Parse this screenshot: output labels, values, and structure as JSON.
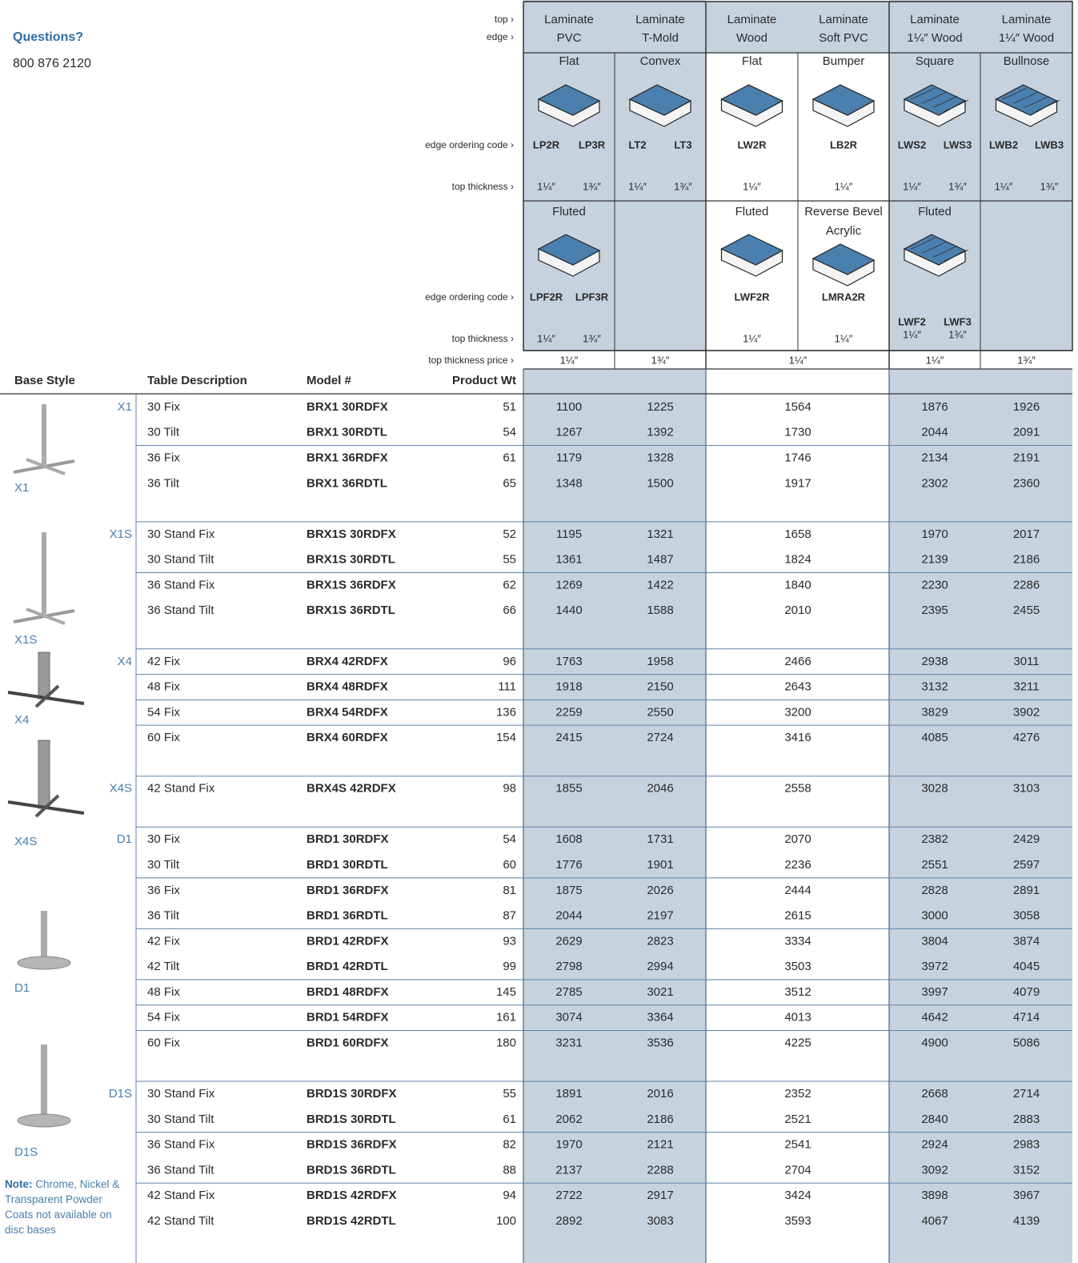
{
  "contact": {
    "title": "Questions?",
    "phone": "800 876 2120"
  },
  "row_labels": {
    "top": "top ›",
    "edge": "edge ›",
    "edge_code": "edge ordering code ›",
    "top_thickness": "top thickness ›",
    "price_thickness": "top thickness price ›"
  },
  "columns": [
    {
      "top": [
        "Laminate",
        "PVC"
      ]
    },
    {
      "top": [
        "Laminate",
        "T-Mold"
      ]
    },
    {
      "top": [
        "Laminate",
        "Wood"
      ]
    },
    {
      "top": [
        "Laminate",
        "Soft PVC"
      ]
    },
    {
      "top": [
        "Laminate",
        "1¼″ Wood"
      ]
    },
    {
      "top": [
        "Laminate",
        "1¼″ Wood"
      ]
    }
  ],
  "edges": [
    [
      {
        "name": [
          "Flat"
        ],
        "codes": [
          "LP2R",
          "LP3R"
        ],
        "thickness": [
          "1¼″",
          "1¾″"
        ]
      },
      {
        "name": [
          "Convex"
        ],
        "codes": [
          "LT2",
          "LT3"
        ],
        "thickness": [
          "1¼″",
          "1¾″"
        ]
      },
      {
        "name": [
          "Flat"
        ],
        "codes": [
          "LW2R"
        ],
        "thickness": [
          "1¼″"
        ]
      },
      {
        "name": [
          "Bumper"
        ],
        "codes": [
          "LB2R"
        ],
        "thickness": [
          "1¼″"
        ]
      },
      {
        "name": [
          "Square"
        ],
        "codes": [
          "LWS2",
          "LWS3"
        ],
        "thickness": [
          "1¼″",
          "1¾″"
        ]
      },
      {
        "name": [
          "Bullnose"
        ],
        "codes": [
          "LWB2",
          "LWB3"
        ],
        "thickness": [
          "1¼″",
          "1¾″"
        ]
      }
    ],
    [
      {
        "name": [
          "Fluted"
        ],
        "codes": [
          "LPF2R",
          "LPF3R"
        ],
        "thickness": [
          "1¼″",
          "1¾″"
        ]
      },
      null,
      {
        "name": [
          "Fluted"
        ],
        "codes": [
          "LWF2R"
        ],
        "thickness": [
          "1¼″"
        ]
      },
      {
        "name": [
          "Reverse Bevel",
          "Acrylic"
        ],
        "codes": [
          "LMRA2R"
        ],
        "thickness": [
          "1¼″"
        ]
      },
      {
        "name": [
          "Fluted"
        ],
        "codes": [
          "LWF2",
          "LWF3"
        ],
        "thickness": [
          "1¼″",
          "1¾″"
        ]
      },
      null
    ]
  ],
  "price_thickness": [
    "1¼″",
    "1¾″",
    "1¼″",
    "1¼″",
    "1¾″"
  ],
  "table": {
    "headers": [
      "Base Style",
      "Table Description",
      "Model #",
      "Product Wt"
    ],
    "groups": [
      {
        "base": "X1",
        "rows": [
          {
            "description": "30 Fix",
            "model": "BRX1 30RDFX",
            "weight": 51,
            "prices": [
              1100,
              1225,
              1564,
              1876,
              1926
            ]
          },
          {
            "description": "30 Tilt",
            "model": "BRX1 30RDTL",
            "weight": 54,
            "prices": [
              1267,
              1392,
              1730,
              2044,
              2091
            ]
          },
          {
            "description": "36 Fix",
            "model": "BRX1 36RDFX",
            "weight": 61,
            "prices": [
              1179,
              1328,
              1746,
              2134,
              2191
            ]
          },
          {
            "description": "36 Tilt",
            "model": "BRX1 36RDTL",
            "weight": 65,
            "prices": [
              1348,
              1500,
              1917,
              2302,
              2360
            ]
          }
        ]
      },
      {
        "base": "X1S",
        "rows": [
          {
            "description": "30 Stand Fix",
            "model": "BRX1S 30RDFX",
            "weight": 52,
            "prices": [
              1195,
              1321,
              1658,
              1970,
              2017
            ]
          },
          {
            "description": "30 Stand Tilt",
            "model": "BRX1S 30RDTL",
            "weight": 55,
            "prices": [
              1361,
              1487,
              1824,
              2139,
              2186
            ]
          },
          {
            "description": "36 Stand Fix",
            "model": "BRX1S 36RDFX",
            "weight": 62,
            "prices": [
              1269,
              1422,
              1840,
              2230,
              2286
            ]
          },
          {
            "description": "36 Stand Tilt",
            "model": "BRX1S 36RDTL",
            "weight": 66,
            "prices": [
              1440,
              1588,
              2010,
              2395,
              2455
            ]
          }
        ]
      },
      {
        "base": "X4",
        "rows": [
          {
            "description": "42 Fix",
            "model": "BRX4 42RDFX",
            "weight": 96,
            "prices": [
              1763,
              1958,
              2466,
              2938,
              3011
            ]
          },
          {
            "description": "48 Fix",
            "model": "BRX4 48RDFX",
            "weight": 111,
            "prices": [
              1918,
              2150,
              2643,
              3132,
              3211
            ]
          },
          {
            "description": "54 Fix",
            "model": "BRX4 54RDFX",
            "weight": 136,
            "prices": [
              2259,
              2550,
              3200,
              3829,
              3902
            ]
          },
          {
            "description": "60 Fix",
            "model": "BRX4 60RDFX",
            "weight": 154,
            "prices": [
              2415,
              2724,
              3416,
              4085,
              4276
            ]
          }
        ]
      },
      {
        "base": "X4S",
        "rows": [
          {
            "description": "42 Stand Fix",
            "model": "BRX4S 42RDFX",
            "weight": 98,
            "prices": [
              1855,
              2046,
              2558,
              3028,
              3103
            ]
          }
        ]
      },
      {
        "base": "D1",
        "rows": [
          {
            "description": "30 Fix",
            "model": "BRD1 30RDFX",
            "weight": 54,
            "prices": [
              1608,
              1731,
              2070,
              2382,
              2429
            ]
          },
          {
            "description": "30 Tilt",
            "model": "BRD1 30RDTL",
            "weight": 60,
            "prices": [
              1776,
              1901,
              2236,
              2551,
              2597
            ]
          },
          {
            "description": "36 Fix",
            "model": "BRD1 36RDFX",
            "weight": 81,
            "prices": [
              1875,
              2026,
              2444,
              2828,
              2891
            ]
          },
          {
            "description": "36 Tilt",
            "model": "BRD1 36RDTL",
            "weight": 87,
            "prices": [
              2044,
              2197,
              2615,
              3000,
              3058
            ]
          },
          {
            "description": "42 Fix",
            "model": "BRD1 42RDFX",
            "weight": 93,
            "prices": [
              2629,
              2823,
              3334,
              3804,
              3874
            ]
          },
          {
            "description": "42 Tilt",
            "model": "BRD1 42RDTL",
            "weight": 99,
            "prices": [
              2798,
              2994,
              3503,
              3972,
              4045
            ]
          },
          {
            "description": "48 Fix",
            "model": "BRD1 48RDFX",
            "weight": 145,
            "prices": [
              2785,
              3021,
              3512,
              3997,
              4079
            ]
          },
          {
            "description": "54 Fix",
            "model": "BRD1 54RDFX",
            "weight": 161,
            "prices": [
              3074,
              3364,
              4013,
              4642,
              4714
            ]
          },
          {
            "description": "60 Fix",
            "model": "BRD1 60RDFX",
            "weight": 180,
            "prices": [
              3231,
              3536,
              4225,
              4900,
              5086
            ]
          }
        ]
      },
      {
        "base": "D1S",
        "rows": [
          {
            "description": "30 Stand Fix",
            "model": "BRD1S 30RDFX",
            "weight": 55,
            "prices": [
              1891,
              2016,
              2352,
              2668,
              2714
            ]
          },
          {
            "description": "30 Stand Tilt",
            "model": "BRD1S 30RDTL",
            "weight": 61,
            "prices": [
              2062,
              2186,
              2521,
              2840,
              2883
            ]
          },
          {
            "description": "36 Stand Fix",
            "model": "BRD1S 36RDFX",
            "weight": 82,
            "prices": [
              1970,
              2121,
              2541,
              2924,
              2983
            ]
          },
          {
            "description": "36 Stand Tilt",
            "model": "BRD1S 36RDTL",
            "weight": 88,
            "prices": [
              2137,
              2288,
              2704,
              3092,
              3152
            ]
          },
          {
            "description": "42 Stand Fix",
            "model": "BRD1S 42RDFX",
            "weight": 94,
            "prices": [
              2722,
              2917,
              3424,
              3898,
              3967
            ]
          },
          {
            "description": "42 Stand Tilt",
            "model": "BRD1S 42RDTL",
            "weight": 100,
            "prices": [
              2892,
              3083,
              3593,
              4067,
              4139
            ]
          }
        ]
      }
    ]
  },
  "note": {
    "label": "Note:",
    "text": "Chrome, Nickel & Transparent Powder Coats not available on disc bases"
  }
}
